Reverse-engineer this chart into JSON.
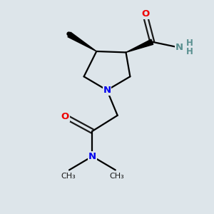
{
  "background_color": "#dde5ea",
  "atom_colors": {
    "C": "#1a1a1a",
    "N": "#0000ee",
    "O": "#ee0000",
    "H": "#5a9090"
  },
  "figsize": [
    3.0,
    3.0
  ],
  "dpi": 100,
  "bond_lw": 1.6,
  "font_size": 9.5,
  "font_size_small": 8.5
}
